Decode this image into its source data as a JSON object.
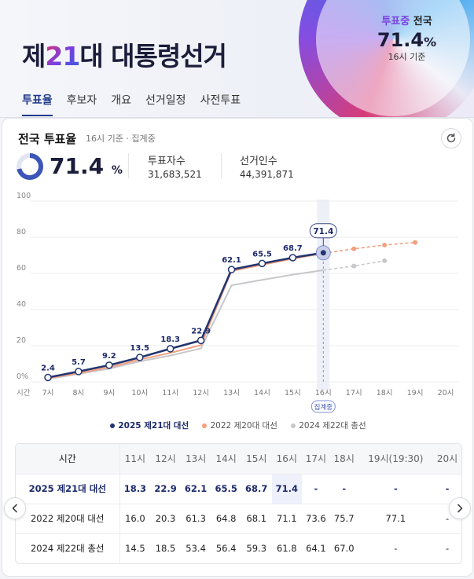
{
  "header": {
    "logo_text": "제21대 대통령선거",
    "turnout_tag": "투표중",
    "turnout_region": "전국",
    "turnout_rate": "71.4",
    "turnout_pct": "%",
    "turnout_basis": "16시 기준"
  },
  "tabs": [
    {
      "label": "투표율",
      "active": true
    },
    {
      "label": "후보자",
      "active": false
    },
    {
      "label": "개요",
      "active": false
    },
    {
      "label": "선거일정",
      "active": false
    },
    {
      "label": "사전투표",
      "active": false
    }
  ],
  "summary": {
    "title": "전국 투표율",
    "subtitle": "16시 기준 · 집계중",
    "rate": "71.4",
    "rate_unit": "%",
    "rate_fraction": 0.714,
    "voters_label": "투표자수",
    "voters_value": "31,683,521",
    "electorate_label": "선거인수",
    "electorate_value": "44,391,871"
  },
  "colors": {
    "series_2025": "#243670",
    "series_2022": "#f4a07f",
    "series_2024": "#c8c8cc",
    "accent": "#7b3fe0"
  },
  "chart_data": {
    "type": "line",
    "x_title": "시간",
    "categories": [
      "7시",
      "8시",
      "9시",
      "10시",
      "11시",
      "12시",
      "13시",
      "14시",
      "15시",
      "16시",
      "17시",
      "18시",
      "19시",
      "20시"
    ],
    "current_badge": "집계중",
    "highlight_category": "16시",
    "highlight_label": "71.4",
    "y_ticks": [
      "0%",
      "20",
      "40",
      "60",
      "80",
      "100"
    ],
    "ylim": [
      0,
      100
    ],
    "series": [
      {
        "name": "2025 제21대 대선",
        "color": "#243670",
        "labeled": true,
        "values": [
          2.4,
          5.7,
          9.2,
          13.5,
          18.3,
          22.9,
          62.1,
          65.5,
          68.7,
          71.4,
          null,
          null,
          null,
          null
        ]
      },
      {
        "name": "2022 제20대 대선",
        "color": "#f4a07f",
        "labeled": false,
        "values": [
          2.0,
          4.8,
          8.0,
          12.3,
          16.0,
          20.3,
          61.3,
          64.8,
          68.1,
          71.1,
          73.6,
          75.7,
          77.1,
          null
        ]
      },
      {
        "name": "2024 제22대 총선",
        "color": "#c8c8cc",
        "labeled": false,
        "values": [
          1.6,
          4.3,
          7.3,
          11.3,
          14.5,
          18.5,
          53.4,
          56.4,
          59.3,
          61.8,
          64.1,
          67.0,
          null,
          null
        ]
      }
    ]
  },
  "table": {
    "header_label": "시간",
    "columns": [
      "11시",
      "12시",
      "13시",
      "14시",
      "15시",
      "16시",
      "17시",
      "18시",
      "19시(19:30)",
      "20시"
    ],
    "rows": [
      {
        "label": "2025 제21대 대선",
        "cells": [
          "18.3",
          "22.9",
          "62.1",
          "65.5",
          "68.7",
          "71.4",
          "-",
          "-",
          "-",
          "-"
        ]
      },
      {
        "label": "2022 제20대 대선",
        "cells": [
          "16.0",
          "20.3",
          "61.3",
          "64.8",
          "68.1",
          "71.1",
          "73.6",
          "75.7",
          "77.1",
          "-"
        ]
      },
      {
        "label": "2024 제22대 총선",
        "cells": [
          "14.5",
          "18.5",
          "53.4",
          "56.4",
          "59.3",
          "61.8",
          "64.1",
          "67.0",
          "-",
          "-"
        ]
      }
    ]
  },
  "icons": {
    "refresh": "refresh-icon",
    "prev": "chevron-left-icon",
    "next": "chevron-right-icon"
  }
}
